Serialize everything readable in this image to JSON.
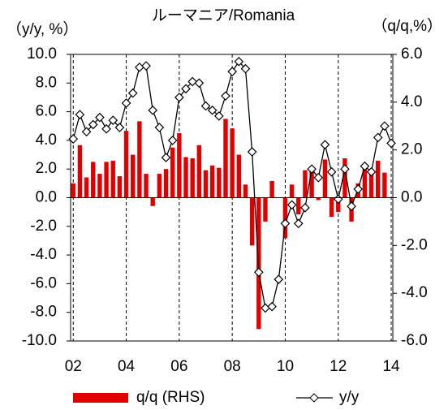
{
  "chart_data": {
    "type": "combo",
    "title": "ルーマニア/Romania",
    "y_label": "（y/y, %）",
    "y2_label": "（q/q,%）",
    "x": [
      2002,
      2002.25,
      2002.5,
      2002.75,
      2003,
      2003.25,
      2003.5,
      2003.75,
      2004,
      2004.25,
      2004.5,
      2004.75,
      2005,
      2005.25,
      2005.5,
      2005.75,
      2006,
      2006.25,
      2006.5,
      2006.75,
      2007,
      2007.25,
      2007.5,
      2007.75,
      2008,
      2008.25,
      2008.5,
      2008.75,
      2009,
      2009.25,
      2009.5,
      2009.75,
      2010,
      2010.25,
      2010.5,
      2010.75,
      2011,
      2011.25,
      2011.5,
      2011.75,
      2012,
      2012.25,
      2012.5,
      2012.75,
      2013,
      2013.25,
      2013.5,
      2013.75,
      2014
    ],
    "series": [
      {
        "name": "q/q (RHS)",
        "type": "bar",
        "axis": "y2",
        "color": "#e00000",
        "values": [
          0.6,
          2.2,
          0.85,
          1.5,
          1.0,
          1.5,
          1.55,
          0.9,
          2.8,
          1.8,
          3.2,
          1.0,
          -0.35,
          1.0,
          1.2,
          2.1,
          2.7,
          1.7,
          1.65,
          2.2,
          1.15,
          1.35,
          1.25,
          3.3,
          2.9,
          1.8,
          0.55,
          -2.0,
          -5.5,
          -1.0,
          0.7,
          0.0,
          -1.7,
          0.55,
          -0.7,
          1.15,
          1.2,
          -0.1,
          1.6,
          -0.8,
          -0.6,
          1.65,
          -1.0,
          0.6,
          1.4,
          1.2,
          1.55,
          1.05,
          0.0
        ]
      },
      {
        "name": "y/y",
        "type": "line",
        "color": "#000000",
        "values": [
          4.1,
          5.8,
          4.6,
          5.1,
          5.6,
          4.8,
          5.4,
          4.9,
          6.6,
          7.3,
          9.1,
          9.2,
          6.1,
          4.9,
          2.8,
          4.0,
          7.0,
          7.6,
          8.1,
          8.0,
          6.4,
          6.1,
          5.7,
          7.1,
          8.8,
          9.5,
          9.0,
          3.2,
          -5.2,
          -7.7,
          -7.6,
          -5.7,
          -1.8,
          -0.5,
          -1.8,
          -0.7,
          2.0,
          1.4,
          3.7,
          1.8,
          -0.1,
          2.0,
          -0.6,
          0.6,
          2.2,
          1.8,
          4.2,
          5.0,
          3.8
        ]
      }
    ],
    "xlim": [
      2001.9,
      2014.06
    ],
    "xticks": [
      {
        "value": 2002,
        "label": "02"
      },
      {
        "value": 2004,
        "label": "04"
      },
      {
        "value": 2006,
        "label": "06"
      },
      {
        "value": 2008,
        "label": "08"
      },
      {
        "value": 2010,
        "label": "10"
      },
      {
        "value": 2012,
        "label": "12"
      },
      {
        "value": 2014,
        "label": "14"
      }
    ],
    "ylim": [
      -10,
      10
    ],
    "yticks": [
      {
        "value": 10,
        "label": "10.0"
      },
      {
        "value": 8,
        "label": "8.0"
      },
      {
        "value": 6,
        "label": "6.0"
      },
      {
        "value": 4,
        "label": "4.0"
      },
      {
        "value": 2,
        "label": "2.0"
      },
      {
        "value": 0,
        "label": "0.0"
      },
      {
        "value": -2,
        "label": "-2.0"
      },
      {
        "value": -4,
        "label": "-4.0"
      },
      {
        "value": -6,
        "label": "-6.0"
      },
      {
        "value": -8,
        "label": "-8.0"
      },
      {
        "value": -10,
        "label": "-10.0"
      }
    ],
    "y2lim": [
      -6,
      6
    ],
    "y2ticks": [
      {
        "value": 6,
        "label": "6.0"
      },
      {
        "value": 4,
        "label": "4.0"
      },
      {
        "value": 2,
        "label": "2.0"
      },
      {
        "value": 0,
        "label": "0.0"
      },
      {
        "value": -2,
        "label": "-2.0"
      },
      {
        "value": -4,
        "label": "-4.0"
      },
      {
        "value": -6,
        "label": "-6.0"
      }
    ],
    "grid": true
  }
}
